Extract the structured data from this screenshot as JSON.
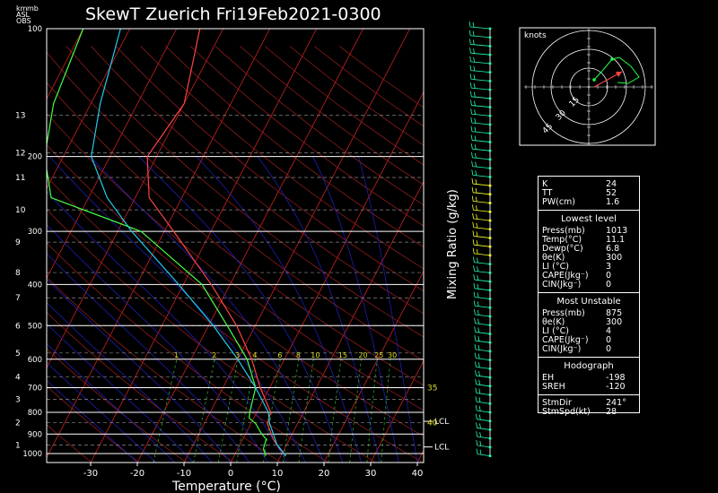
{
  "chart_data": {
    "type": "skew-t",
    "title": "SkewT Zuerich Fri19Feb2021-0300",
    "xlabel": "Temperature (°C)",
    "ylabel_right": "Mixing Ratio (g/kg)",
    "units_top_left": [
      "km",
      "mb",
      "ASL",
      "OBS"
    ],
    "x_ticks": [
      "-30",
      "-20",
      "-10",
      "0",
      "10",
      "20",
      "30",
      "40"
    ],
    "x_tick_values": [
      -30,
      -20,
      -10,
      0,
      10,
      20,
      30,
      40
    ],
    "pressure_ticks": [
      {
        "label": "100",
        "p": 100
      },
      {
        "label": "200",
        "p": 200
      },
      {
        "label": "300",
        "p": 300
      },
      {
        "label": "400",
        "p": 400
      },
      {
        "label": "500",
        "p": 500
      },
      {
        "label": "600",
        "p": 600
      },
      {
        "label": "700",
        "p": 700
      },
      {
        "label": "800",
        "p": 800
      },
      {
        "label": "900",
        "p": 900
      },
      {
        "label": "1000",
        "p": 1000
      }
    ],
    "height_ticks": [
      {
        "label": "1",
        "p": 955
      },
      {
        "label": "2",
        "p": 845
      },
      {
        "label": "3",
        "p": 745
      },
      {
        "label": "4",
        "p": 660
      },
      {
        "label": "5",
        "p": 580
      },
      {
        "label": "6",
        "p": 500
      },
      {
        "label": "7",
        "p": 430
      },
      {
        "label": "8",
        "p": 375
      },
      {
        "label": "9",
        "p": 318
      },
      {
        "label": "10",
        "p": 267
      },
      {
        "label": "11",
        "p": 224
      },
      {
        "label": "12",
        "p": 196
      },
      {
        "label": "13",
        "p": 160
      }
    ],
    "mixing_ratio_labels": [
      "1",
      "2",
      "3",
      "4",
      "6",
      "8",
      "10",
      "15",
      "20",
      "25",
      "30"
    ],
    "mixing_ratio_values": [
      1,
      2,
      3,
      4,
      6,
      8,
      10,
      15,
      20,
      25,
      30
    ],
    "annotations": [
      {
        "text": "35",
        "p": 700
      },
      {
        "text": "LCL",
        "p": 840
      },
      {
        "text": "40",
        "p": 845
      },
      {
        "text": "LCL",
        "p": 965
      }
    ],
    "series": [
      {
        "name": "Temperature",
        "color": "#ff4444",
        "points": [
          [
            1013,
            11.1
          ],
          [
            975,
            9
          ],
          [
            925,
            6.5
          ],
          [
            850,
            3.5
          ],
          [
            800,
            3
          ],
          [
            700,
            -2
          ],
          [
            600,
            -7
          ],
          [
            500,
            -14
          ],
          [
            400,
            -24
          ],
          [
            300,
            -38
          ],
          [
            250,
            -47
          ],
          [
            200,
            -52
          ],
          [
            150,
            -50
          ],
          [
            100,
            -55
          ]
        ]
      },
      {
        "name": "Dewpoint",
        "color": "#44ff44",
        "points": [
          [
            1013,
            6.8
          ],
          [
            975,
            5.5
          ],
          [
            925,
            5
          ],
          [
            900,
            3.5
          ],
          [
            850,
            1
          ],
          [
            825,
            -1
          ],
          [
            800,
            -1.5
          ],
          [
            700,
            -3
          ],
          [
            600,
            -8
          ],
          [
            500,
            -16
          ],
          [
            400,
            -26
          ],
          [
            300,
            -45
          ],
          [
            250,
            -68
          ],
          [
            200,
            -74
          ],
          [
            150,
            -78
          ],
          [
            100,
            -80
          ]
        ]
      },
      {
        "name": "Parcel",
        "color": "#22ccee",
        "points": [
          [
            1013,
            11.1
          ],
          [
            950,
            7.8
          ],
          [
            900,
            6.0
          ],
          [
            850,
            4.0
          ],
          [
            800,
            2.5
          ],
          [
            700,
            -3
          ],
          [
            600,
            -10
          ],
          [
            500,
            -19
          ],
          [
            400,
            -31
          ],
          [
            300,
            -47
          ],
          [
            250,
            -56
          ],
          [
            200,
            -64
          ],
          [
            150,
            -68
          ],
          [
            100,
            -72
          ]
        ]
      }
    ]
  },
  "hodograph": {
    "title": "knots",
    "ring_labels": [
      "15",
      "30",
      "45"
    ]
  },
  "indices": {
    "top": [
      {
        "k": "K",
        "v": "24"
      },
      {
        "k": "TT",
        "v": "52"
      },
      {
        "k": "PW(cm)",
        "v": "1.6"
      }
    ],
    "lowest_title": "Lowest level",
    "lowest": [
      {
        "k": "Press(mb)",
        "v": "1013"
      },
      {
        "k": "Temp(°C)",
        "v": "11.1"
      },
      {
        "k": "Dewp(°C)",
        "v": "6.8"
      },
      {
        "k": "θe(K)",
        "v": "300"
      },
      {
        "k": "LI (°C)",
        "v": "3"
      },
      {
        "k": "CAPE(Jkg⁻)",
        "v": "0"
      },
      {
        "k": "CIN(Jkg⁻)",
        "v": "0"
      }
    ],
    "unstable_title": "Most Unstable",
    "unstable": [
      {
        "k": "Press(mb)",
        "v": "875"
      },
      {
        "k": "θe(K)",
        "v": "300"
      },
      {
        "k": "LI (°C)",
        "v": "4"
      },
      {
        "k": "CAPE(Jkg⁻)",
        "v": "0"
      },
      {
        "k": "CIN(Jkg⁻)",
        "v": "0"
      }
    ],
    "hodo_title": "Hodograph",
    "hodo": [
      {
        "k": "EH",
        "v": "-198"
      },
      {
        "k": "SREH",
        "v": "-120"
      },
      {
        "k": "StmDir",
        "v": "241°"
      },
      {
        "k": "StmSpd(kt)",
        "v": "28"
      }
    ]
  },
  "colors": {
    "isotherm": "#cc2222",
    "dry_adiabat": "#a02020",
    "moist_adiabat": "#2222cc",
    "mixing": "#22aa22",
    "wind": "#22ffaa",
    "wind_yellow": "#ffff22"
  }
}
